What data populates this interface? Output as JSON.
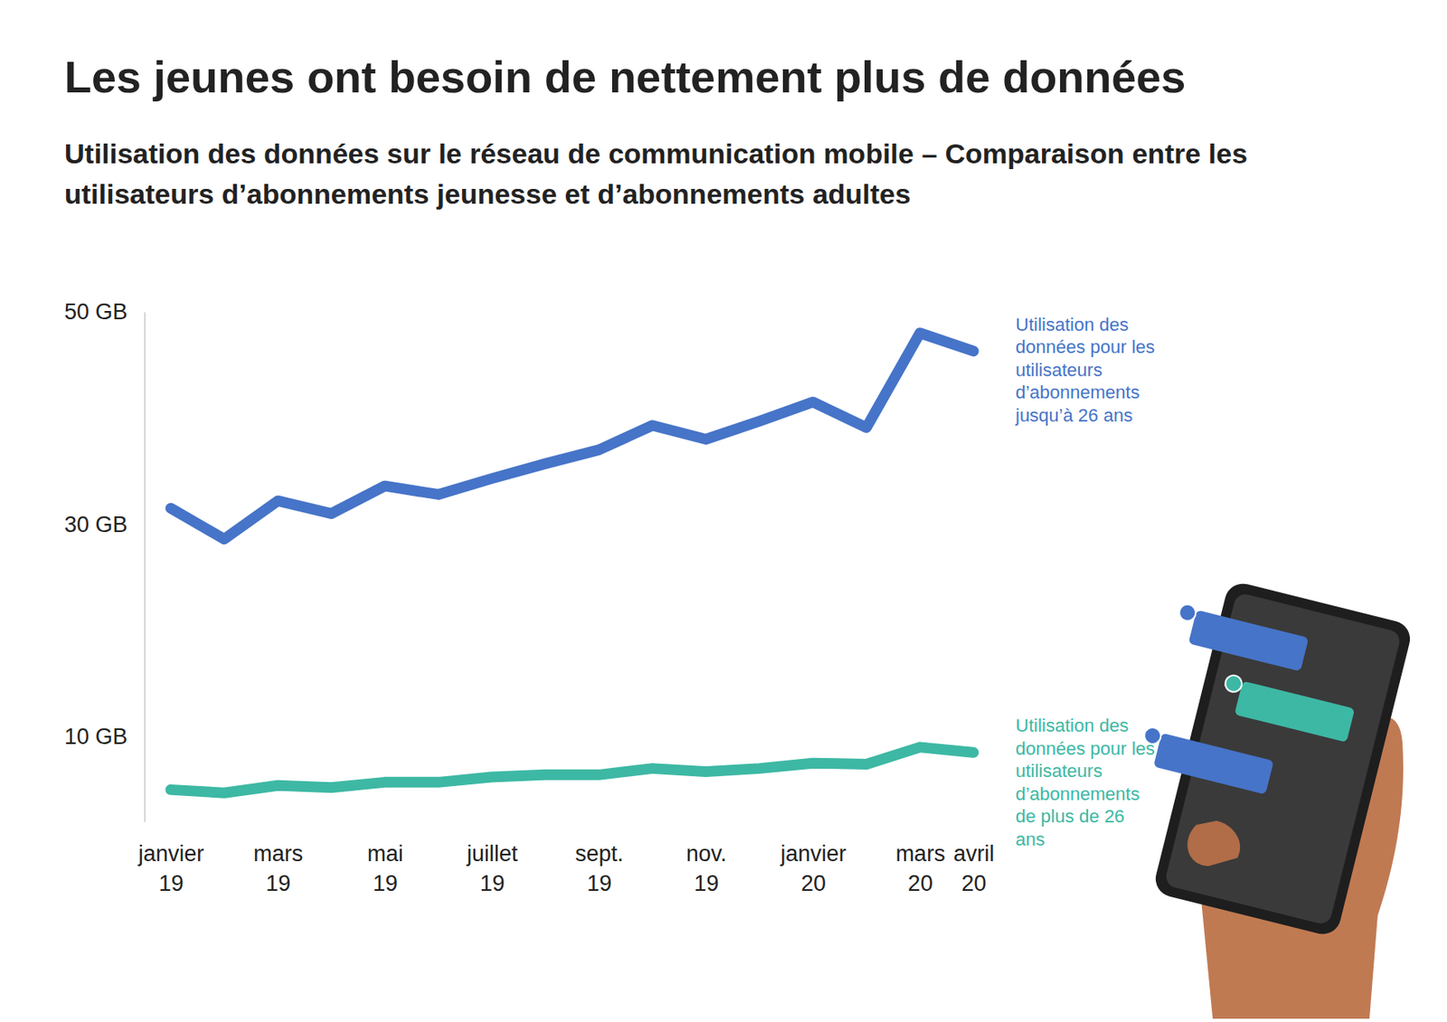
{
  "chart_data": {
    "type": "line",
    "title": "Les jeunes ont besoin de nettement plus de données",
    "subtitle": "Utilisation des données sur le réseau de communication mobile – Comparaison entre les utilisateurs d’abonnements jeunesse et d’abonnements adultes",
    "categories": [
      "janvier 19",
      null,
      "mars 19",
      null,
      "mai 19",
      null,
      "juillet 19",
      null,
      "sept. 19",
      null,
      "nov. 19",
      null,
      "janvier 20",
      null,
      "mars 20",
      "avril 20"
    ],
    "series": [
      {
        "name": "Utilisation des données pour les utilisateurs d’abonnements jusqu’à 26 ans",
        "color": "#4674c8",
        "values": [
          31.5,
          28.6,
          32.2,
          31.0,
          33.6,
          32.8,
          34.3,
          35.7,
          37.0,
          39.3,
          38.0,
          39.7,
          41.5,
          39.1,
          48.0,
          46.3
        ]
      },
      {
        "name": "Utilisation des données pour les utilisateurs d’abonnements de plus de 26 ans",
        "color": "#3db8a4",
        "values": [
          5.0,
          4.7,
          5.4,
          5.2,
          5.7,
          5.7,
          6.2,
          6.4,
          6.4,
          7.0,
          6.7,
          7.0,
          7.5,
          7.4,
          9.0,
          8.5
        ]
      }
    ],
    "ylim": [
      2,
      50
    ],
    "yticks": [
      {
        "value": 10,
        "label": "10 GB"
      },
      {
        "value": 30,
        "label": "30 GB"
      },
      {
        "value": 50,
        "label": "50 GB"
      }
    ],
    "grid": false
  }
}
